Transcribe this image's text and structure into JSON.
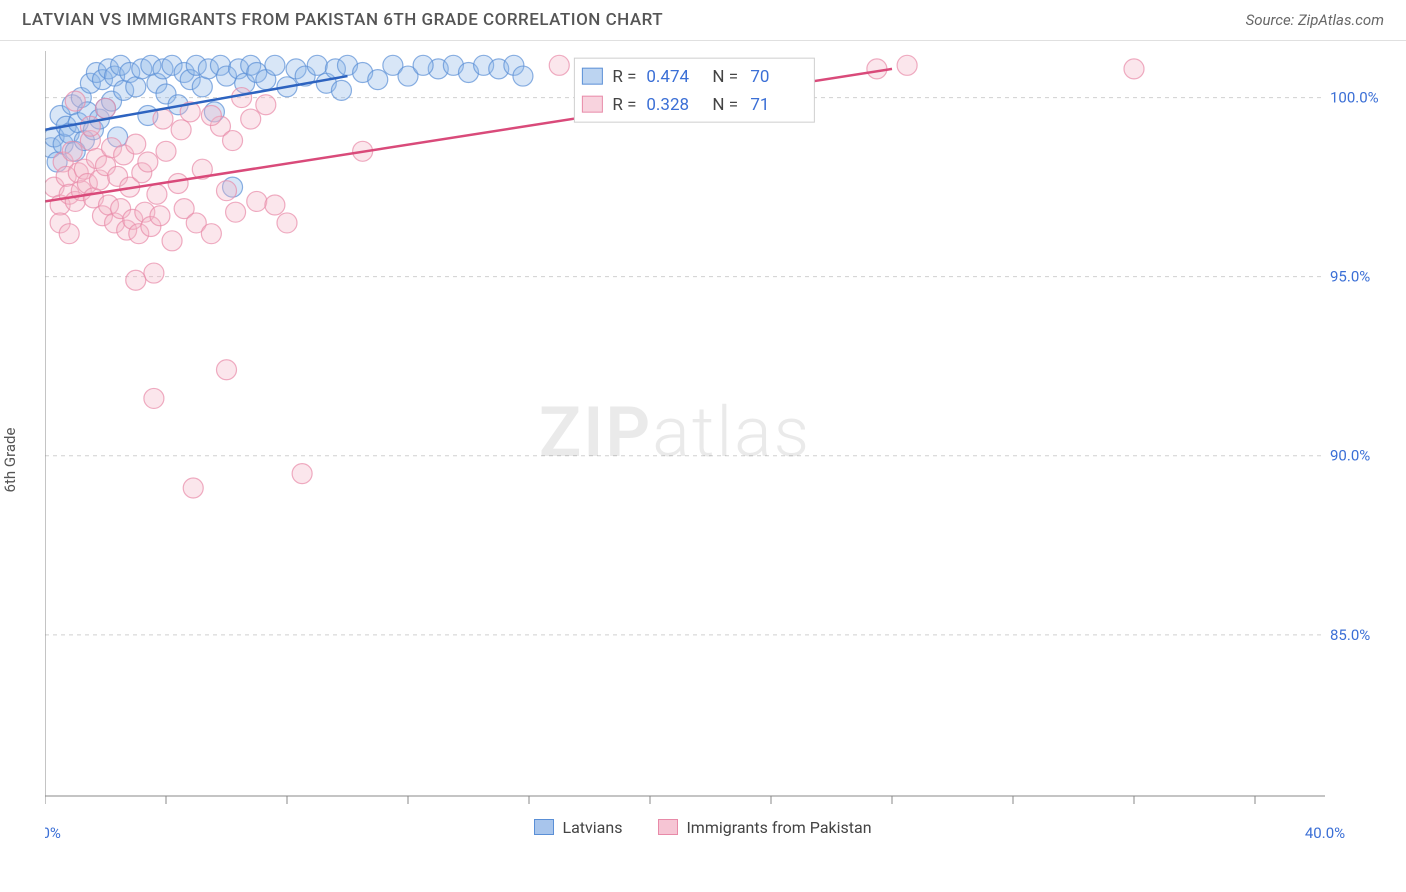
{
  "header": {
    "title": "LATVIAN VS IMMIGRANTS FROM PAKISTAN 6TH GRADE CORRELATION CHART",
    "source": "Source: ZipAtlas.com"
  },
  "ylabel": "6th Grade",
  "watermark": {
    "bold": "ZIP",
    "light": "atlas"
  },
  "chart": {
    "type": "scatter",
    "xlim": [
      0,
      40
    ],
    "ylim": [
      80.5,
      101.3
    ],
    "xticks": [
      0,
      4,
      8,
      12,
      16,
      20,
      24,
      28,
      32,
      36,
      40
    ],
    "xtick_labels": {
      "0": "0.0%",
      "40": "40.0%"
    },
    "yticks": [
      85,
      90,
      95,
      100
    ],
    "ytick_labels": {
      "85": "85.0%",
      "90": "90.0%",
      "95": "95.0%",
      "100": "100.0%"
    },
    "grid_color": "#d0d0d0",
    "axis_color": "#888888",
    "background": "#ffffff",
    "marker_radius": 10,
    "marker_opacity": 0.35,
    "series": [
      {
        "name": "Latvians",
        "fill": "#8fb7e8",
        "stroke": "#5a8fd6",
        "R": "0.474",
        "N": "70",
        "trend": {
          "x1": 0,
          "y1": 99.1,
          "x2": 10,
          "y2": 100.6,
          "color": "#2d63c0",
          "width": 2.5
        },
        "points": [
          [
            0.2,
            98.6
          ],
          [
            0.3,
            98.9
          ],
          [
            0.4,
            98.2
          ],
          [
            0.5,
            99.5
          ],
          [
            0.6,
            98.7
          ],
          [
            0.7,
            99.2
          ],
          [
            0.8,
            99.0
          ],
          [
            0.9,
            99.8
          ],
          [
            1.0,
            98.5
          ],
          [
            1.1,
            99.3
          ],
          [
            1.2,
            100.0
          ],
          [
            1.3,
            98.8
          ],
          [
            1.4,
            99.6
          ],
          [
            1.5,
            100.4
          ],
          [
            1.6,
            99.1
          ],
          [
            1.7,
            100.7
          ],
          [
            1.8,
            99.4
          ],
          [
            1.9,
            100.5
          ],
          [
            2.0,
            99.7
          ],
          [
            2.1,
            100.8
          ],
          [
            2.2,
            99.9
          ],
          [
            2.3,
            100.6
          ],
          [
            2.4,
            98.9
          ],
          [
            2.5,
            100.9
          ],
          [
            2.6,
            100.2
          ],
          [
            2.8,
            100.7
          ],
          [
            3.0,
            100.3
          ],
          [
            3.2,
            100.8
          ],
          [
            3.4,
            99.5
          ],
          [
            3.5,
            100.9
          ],
          [
            3.7,
            100.4
          ],
          [
            3.9,
            100.8
          ],
          [
            4.0,
            100.1
          ],
          [
            4.2,
            100.9
          ],
          [
            4.4,
            99.8
          ],
          [
            4.6,
            100.7
          ],
          [
            4.8,
            100.5
          ],
          [
            5.0,
            100.9
          ],
          [
            5.2,
            100.3
          ],
          [
            5.4,
            100.8
          ],
          [
            5.6,
            99.6
          ],
          [
            5.8,
            100.9
          ],
          [
            6.0,
            100.6
          ],
          [
            6.2,
            97.5
          ],
          [
            6.4,
            100.8
          ],
          [
            6.6,
            100.4
          ],
          [
            6.8,
            100.9
          ],
          [
            7.0,
            100.7
          ],
          [
            7.3,
            100.5
          ],
          [
            7.6,
            100.9
          ],
          [
            8.0,
            100.3
          ],
          [
            8.3,
            100.8
          ],
          [
            8.6,
            100.6
          ],
          [
            9.0,
            100.9
          ],
          [
            9.3,
            100.4
          ],
          [
            9.6,
            100.8
          ],
          [
            10.0,
            100.9
          ],
          [
            10.5,
            100.7
          ],
          [
            11.0,
            100.5
          ],
          [
            11.5,
            100.9
          ],
          [
            12.0,
            100.6
          ],
          [
            13.0,
            100.8
          ],
          [
            13.5,
            100.9
          ],
          [
            14.0,
            100.7
          ],
          [
            14.5,
            100.9
          ],
          [
            15.0,
            100.8
          ],
          [
            15.5,
            100.9
          ],
          [
            15.8,
            100.6
          ],
          [
            12.5,
            100.9
          ],
          [
            9.8,
            100.2
          ]
        ]
      },
      {
        "name": "Immigrants from Pakistan",
        "fill": "#f4b6c8",
        "stroke": "#e88aa8",
        "R": "0.328",
        "N": "71",
        "trend": {
          "x1": 0,
          "y1": 97.1,
          "x2": 28,
          "y2": 100.8,
          "color": "#d94a7a",
          "width": 2.5
        },
        "points": [
          [
            0.3,
            97.5
          ],
          [
            0.5,
            97.0
          ],
          [
            0.6,
            98.2
          ],
          [
            0.7,
            97.8
          ],
          [
            0.8,
            97.3
          ],
          [
            0.9,
            98.5
          ],
          [
            1.0,
            97.1
          ],
          [
            1.1,
            97.9
          ],
          [
            1.2,
            97.4
          ],
          [
            1.3,
            98.0
          ],
          [
            1.4,
            97.6
          ],
          [
            1.5,
            98.8
          ],
          [
            1.6,
            97.2
          ],
          [
            1.7,
            98.3
          ],
          [
            1.8,
            97.7
          ],
          [
            1.9,
            96.7
          ],
          [
            2.0,
            98.1
          ],
          [
            2.1,
            97.0
          ],
          [
            2.2,
            98.6
          ],
          [
            2.3,
            96.5
          ],
          [
            2.4,
            97.8
          ],
          [
            2.5,
            96.9
          ],
          [
            2.6,
            98.4
          ],
          [
            2.7,
            96.3
          ],
          [
            2.8,
            97.5
          ],
          [
            2.9,
            96.6
          ],
          [
            3.0,
            98.7
          ],
          [
            3.1,
            96.2
          ],
          [
            3.2,
            97.9
          ],
          [
            3.3,
            96.8
          ],
          [
            3.4,
            98.2
          ],
          [
            3.5,
            96.4
          ],
          [
            3.6,
            95.1
          ],
          [
            3.7,
            97.3
          ],
          [
            3.8,
            96.7
          ],
          [
            4.0,
            98.5
          ],
          [
            4.2,
            96.0
          ],
          [
            4.4,
            97.6
          ],
          [
            4.6,
            96.9
          ],
          [
            4.8,
            99.6
          ],
          [
            5.0,
            96.5
          ],
          [
            5.2,
            98.0
          ],
          [
            5.5,
            96.2
          ],
          [
            5.8,
            99.2
          ],
          [
            6.0,
            97.4
          ],
          [
            6.0,
            92.4
          ],
          [
            6.3,
            96.8
          ],
          [
            6.5,
            100.0
          ],
          [
            6.8,
            99.4
          ],
          [
            7.0,
            97.1
          ],
          [
            7.3,
            99.8
          ],
          [
            7.6,
            97.0
          ],
          [
            8.0,
            96.5
          ],
          [
            8.5,
            89.5
          ],
          [
            10.5,
            98.5
          ],
          [
            4.9,
            89.1
          ],
          [
            3.0,
            94.9
          ],
          [
            3.6,
            91.6
          ],
          [
            17.0,
            100.9
          ],
          [
            27.5,
            100.8
          ],
          [
            28.5,
            100.9
          ],
          [
            36.0,
            100.8
          ],
          [
            5.5,
            99.5
          ],
          [
            6.2,
            98.8
          ],
          [
            4.5,
            99.1
          ],
          [
            3.9,
            99.4
          ],
          [
            2.0,
            99.7
          ],
          [
            1.5,
            99.2
          ],
          [
            1.0,
            99.9
          ],
          [
            0.5,
            96.5
          ],
          [
            0.8,
            96.2
          ]
        ]
      }
    ]
  },
  "legend_bottom": [
    {
      "label": "Latvians",
      "fill": "#a8c5ec",
      "stroke": "#5a8fd6"
    },
    {
      "label": "Immigrants from Pakistan",
      "fill": "#f6c5d4",
      "stroke": "#e88aa8"
    }
  ],
  "stats_box": {
    "x": 17.5,
    "y_top": 101.1,
    "width_pct": 7.8,
    "rows": 2
  }
}
